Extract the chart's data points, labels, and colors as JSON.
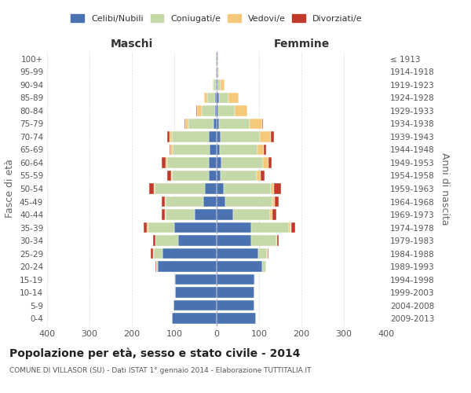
{
  "age_groups": [
    "0-4",
    "5-9",
    "10-14",
    "15-19",
    "20-24",
    "25-29",
    "30-34",
    "35-39",
    "40-44",
    "45-49",
    "50-54",
    "55-59",
    "60-64",
    "65-69",
    "70-74",
    "75-79",
    "80-84",
    "85-89",
    "90-94",
    "95-99",
    "100+"
  ],
  "birth_years": [
    "2009-2013",
    "2004-2008",
    "1999-2003",
    "1994-1998",
    "1989-1993",
    "1984-1988",
    "1979-1983",
    "1974-1978",
    "1969-1973",
    "1964-1968",
    "1959-1963",
    "1954-1958",
    "1949-1953",
    "1944-1948",
    "1939-1943",
    "1934-1938",
    "1929-1933",
    "1924-1928",
    "1919-1923",
    "1914-1918",
    "≤ 1913"
  ],
  "males": {
    "celibi": [
      105,
      102,
      98,
      98,
      138,
      128,
      90,
      100,
      52,
      32,
      28,
      18,
      18,
      16,
      18,
      8,
      4,
      4,
      2,
      1,
      1
    ],
    "coniugati": [
      0,
      0,
      0,
      2,
      5,
      20,
      55,
      62,
      68,
      88,
      118,
      88,
      98,
      88,
      88,
      58,
      32,
      18,
      5,
      1,
      1
    ],
    "vedovi": [
      0,
      0,
      0,
      0,
      0,
      2,
      0,
      2,
      2,
      2,
      2,
      2,
      5,
      5,
      5,
      8,
      10,
      8,
      2,
      0,
      0
    ],
    "divorziati": [
      0,
      0,
      0,
      0,
      2,
      5,
      5,
      8,
      8,
      8,
      12,
      8,
      8,
      3,
      5,
      2,
      2,
      0,
      0,
      0,
      0
    ]
  },
  "females": {
    "nubili": [
      92,
      88,
      88,
      88,
      108,
      98,
      82,
      82,
      38,
      20,
      16,
      10,
      12,
      8,
      10,
      6,
      4,
      5,
      2,
      1,
      1
    ],
    "coniugate": [
      0,
      0,
      0,
      2,
      8,
      20,
      58,
      88,
      88,
      112,
      112,
      85,
      98,
      88,
      92,
      72,
      38,
      22,
      8,
      2,
      1
    ],
    "vedove": [
      0,
      0,
      0,
      0,
      0,
      2,
      2,
      5,
      5,
      5,
      8,
      8,
      12,
      15,
      25,
      30,
      30,
      25,
      8,
      2,
      2
    ],
    "divorziate": [
      0,
      0,
      0,
      0,
      0,
      2,
      5,
      10,
      10,
      10,
      15,
      10,
      8,
      5,
      8,
      2,
      0,
      0,
      0,
      0,
      0
    ]
  },
  "colors": {
    "celibi_nubili": "#4a72b0",
    "coniugati": "#c5d9a8",
    "vedovi": "#f5c97a",
    "divorziati": "#c0392b"
  },
  "title": "Popolazione per età, sesso e stato civile - 2014",
  "subtitle": "COMUNE DI VILLASOR (SU) - Dati ISTAT 1° gennaio 2014 - Elaborazione TUTTITALIA.IT",
  "ylabel_left": "Fasce di età",
  "ylabel_right": "Anni di nascita",
  "xlabel_left": "Maschi",
  "xlabel_right": "Femmine",
  "xlim": 400,
  "xticks": [
    -400,
    -300,
    -200,
    -100,
    0,
    100,
    200,
    300,
    400
  ],
  "xtick_labels": [
    "400",
    "300",
    "200",
    "100",
    "0",
    "100",
    "200",
    "300",
    "400"
  ],
  "legend_labels": [
    "Celibi/Nubili",
    "Coniugati/e",
    "Vedovi/e",
    "Divorziati/e"
  ],
  "background_color": "#ffffff",
  "grid_color": "#cccccc",
  "bar_height": 0.82
}
